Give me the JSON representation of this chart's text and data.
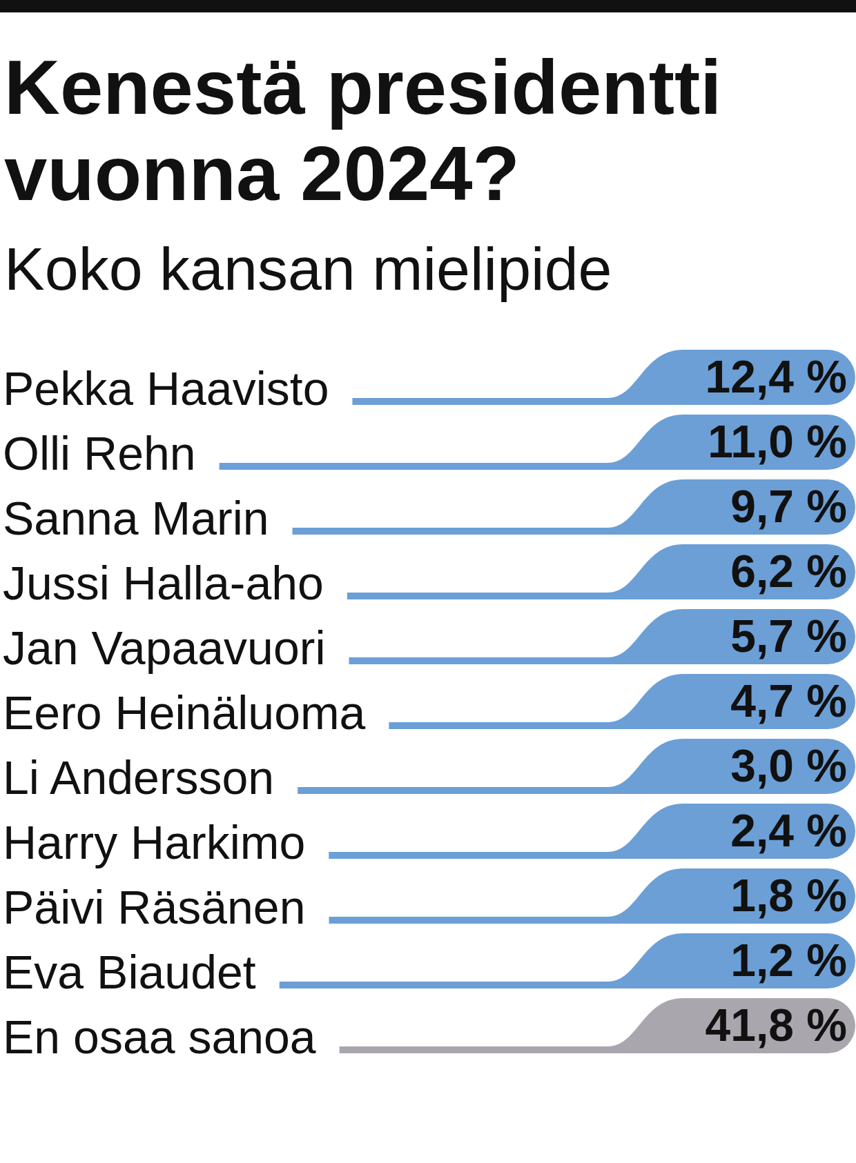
{
  "chart_data": {
    "type": "other",
    "title": "Kenestä presidentti vuonna 2024?",
    "subtitle": "Koko kansan mielipide",
    "categories": [
      "Pekka Haavisto",
      "Olli Rehn",
      "Sanna Marin",
      "Jussi Halla-aho",
      "Jan Vapaavuori",
      "Eero Heinäluoma",
      "Li Andersson",
      "Harry Harkimo",
      "Päivi Räsänen",
      "Eva Biaudet",
      "En osaa sanoa"
    ],
    "values": [
      12.4,
      11.0,
      9.7,
      6.2,
      5.7,
      4.7,
      3.0,
      2.4,
      1.8,
      1.2,
      41.8
    ],
    "value_labels": [
      "12,4 %",
      "11,0 %",
      "9,7 %",
      "6,2 %",
      "5,7 %",
      "4,7 %",
      "3,0 %",
      "2,4 %",
      "1,8 %",
      "1,2 %",
      "41,8 %"
    ],
    "colors": [
      "#6b9fd6",
      "#6b9fd6",
      "#6b9fd6",
      "#6b9fd6",
      "#6b9fd6",
      "#6b9fd6",
      "#6b9fd6",
      "#6b9fd6",
      "#6b9fd6",
      "#6b9fd6",
      "#aaa6ae"
    ]
  }
}
